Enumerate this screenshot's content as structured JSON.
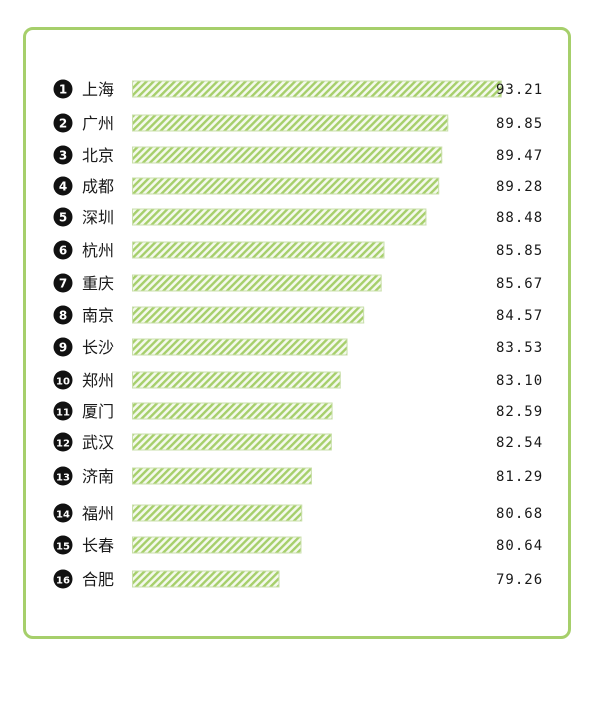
{
  "chart_data": {
    "type": "bar",
    "orientation": "horizontal",
    "title": "",
    "xlabel": "",
    "ylabel": "",
    "xlim": [
      70,
      94
    ],
    "grid": false,
    "ranks": [
      "1",
      "2",
      "3",
      "4",
      "5",
      "6",
      "7",
      "8",
      "9",
      "10",
      "11",
      "12",
      "13",
      "14",
      "15",
      "16"
    ],
    "categories": [
      "上海",
      "广州",
      "北京",
      "成都",
      "深圳",
      "杭州",
      "重庆",
      "南京",
      "长沙",
      "郑州",
      "厦门",
      "武汉",
      "济南",
      "福州",
      "长春",
      "合肥"
    ],
    "values": [
      93.21,
      89.85,
      89.47,
      89.28,
      88.48,
      85.85,
      85.67,
      84.57,
      83.53,
      83.1,
      82.59,
      82.54,
      81.29,
      80.68,
      80.64,
      79.26
    ],
    "value_labels": [
      "93.21",
      "89.85",
      "89.47",
      "89.28",
      "88.48",
      "85.85",
      "85.67",
      "84.57",
      "83.53",
      "83.10",
      "82.59",
      "82.54",
      "81.29",
      "80.68",
      "80.64",
      "79.26"
    ],
    "bar_color": "#a6cf6b",
    "frame_color": "#a6cf6b",
    "badge_color": "#111111"
  }
}
